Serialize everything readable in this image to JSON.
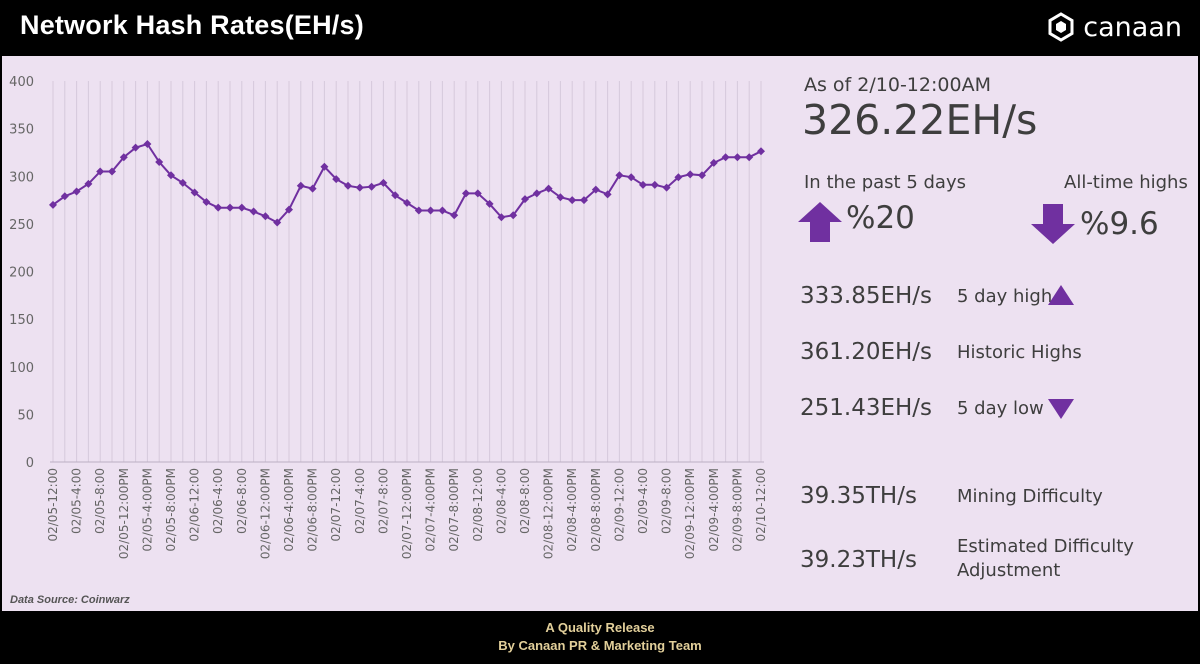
{
  "header": {
    "title": "Network Hash Rates(EH/s)",
    "brand": "canaan"
  },
  "source": "Data Source: Coinwarz",
  "stats": {
    "as_of": "As of 2/10-12:00AM",
    "current": "326.22EH/s",
    "past_label": "In the past 5 days",
    "past_value": "%20",
    "past_direction": "up",
    "ath_label": "All-time highs",
    "ath_value": "%9.6",
    "ath_direction": "down",
    "rows": [
      {
        "value": "333.85EH/s",
        "label": "5 day high",
        "marker": "up-triangle"
      },
      {
        "value": "361.20EH/s",
        "label": "Historic Highs",
        "marker": ""
      },
      {
        "value": "251.43EH/s",
        "label": "5 day low",
        "marker": "down-triangle"
      },
      {
        "value": "39.35TH/s",
        "label": "Mining Difficulty",
        "marker": ""
      },
      {
        "value": "39.23TH/s",
        "label": "Estimated Difficulty",
        "label2": "Adjustment",
        "marker": ""
      }
    ]
  },
  "footer": {
    "line1": "A Quality Release",
    "line2": "By Canaan PR & Marketing Team"
  },
  "colors": {
    "accent": "#7030a0",
    "panel": "#ede1f1",
    "footer_text": "#e2cf9a"
  },
  "chart_data": {
    "type": "line",
    "ylim": [
      0,
      400
    ],
    "yticks": [
      0,
      50,
      100,
      150,
      200,
      250,
      300,
      350,
      400
    ],
    "grid": "vertical",
    "xtick_labels": [
      "02/05-12:00",
      "02/05-4:00",
      "02/05-8:00",
      "02/05-12:00PM",
      "02/05-4:00PM",
      "02/05-8:00PM",
      "02/06-12:00",
      "02/06-4:00",
      "02/06-8:00",
      "02/06-12:00PM",
      "02/06-4:00PM",
      "02/06-8:00PM",
      "02/07-12:00",
      "02/07-4:00",
      "02/07-8:00",
      "02/07-12:00PM",
      "02/07-4:00PM",
      "02/07-8:00PM",
      "02/08-12:00",
      "02/08-4:00",
      "02/08-8:00",
      "02/08-12:00PM",
      "02/08-4:00PM",
      "02/08-8:00PM",
      "02/09-12:00",
      "02/09-4:00",
      "02/09-8:00",
      "02/09-12:00PM",
      "02/09-4:00PM",
      "02/09-8:00PM",
      "02/10-12:00"
    ],
    "series": [
      {
        "values": [
          270,
          279,
          284,
          292,
          305,
          305,
          320,
          330,
          333.85,
          315,
          301,
          293,
          283,
          273,
          267,
          267,
          267,
          263,
          258,
          251.43,
          265,
          290,
          287,
          310,
          297,
          290,
          288,
          289,
          293,
          280,
          272,
          264,
          264,
          264,
          259,
          282,
          282,
          271,
          257,
          259,
          276,
          282,
          287,
          278,
          275,
          275,
          286,
          281,
          301,
          299,
          291,
          291,
          288,
          299,
          302,
          301,
          314,
          320,
          320,
          320,
          326.22
        ]
      }
    ]
  }
}
